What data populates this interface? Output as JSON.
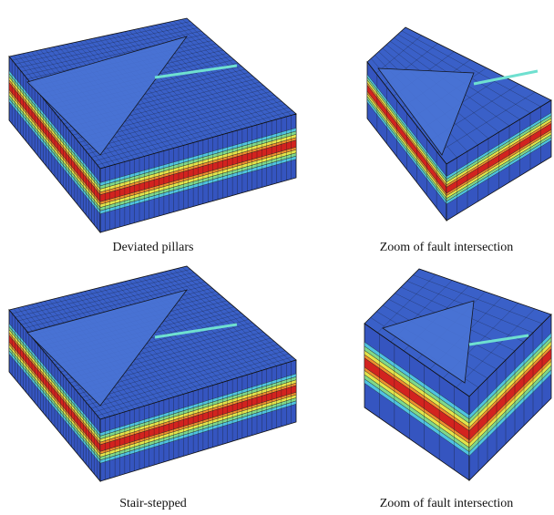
{
  "panels": [
    {
      "caption": "Deviated pillars"
    },
    {
      "caption": "Zoom of fault intersection"
    },
    {
      "caption": "Stair-stepped"
    },
    {
      "caption": "Zoom of fault intersection"
    }
  ]
}
